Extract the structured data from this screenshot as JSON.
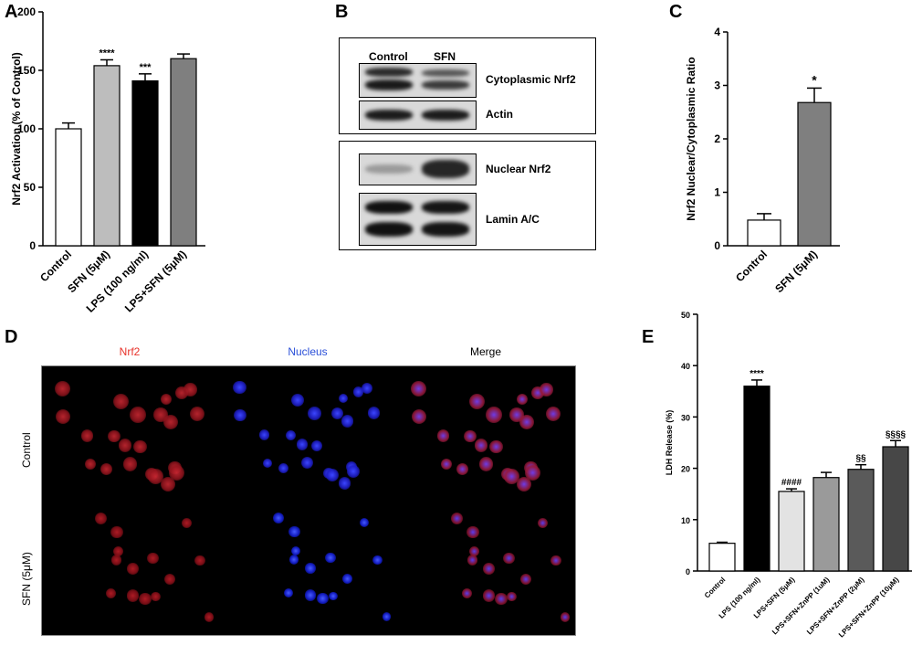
{
  "panels": {
    "a": "A",
    "b": "B",
    "c": "C",
    "d": "D",
    "e": "E"
  },
  "chart_data": [
    {
      "id": "A",
      "type": "bar",
      "ylabel": "Nrf2 Activation (% of Control)",
      "xlabel": "",
      "ylim": [
        0,
        200
      ],
      "yticks": [
        0,
        50,
        100,
        150,
        200
      ],
      "categories": [
        "Control",
        "SFN (5μM)",
        "LPS (100 ng/ml)",
        "LPS+SFN (5μM)"
      ],
      "values": [
        100,
        154,
        141,
        160
      ],
      "errors": [
        5,
        5,
        6,
        4
      ],
      "annotations": [
        "",
        "****",
        "***",
        ""
      ],
      "colors": [
        "#ffffff",
        "#bdbdbd",
        "#000000",
        "#7f7f7f"
      ]
    },
    {
      "id": "C",
      "type": "bar",
      "ylabel": "Nrf2 Nuclear/Cytoplasmic Ratio",
      "xlabel": "",
      "ylim": [
        0,
        4
      ],
      "yticks": [
        0,
        1,
        2,
        3,
        4
      ],
      "categories": [
        "Control",
        "SFN (5μM)"
      ],
      "values": [
        0.48,
        2.68
      ],
      "errors": [
        0.12,
        0.27
      ],
      "annotations": [
        "",
        "*"
      ],
      "colors": [
        "#ffffff",
        "#7f7f7f"
      ]
    },
    {
      "id": "E",
      "type": "bar",
      "ylabel": "LDH Release (%)",
      "xlabel": "",
      "ylim": [
        0,
        50
      ],
      "yticks": [
        0,
        10,
        20,
        30,
        40,
        50
      ],
      "categories": [
        "Control",
        "LPS (100 ng/ml)",
        "LPS+SFN (5μM)",
        "LPS+SFN+ZnPP (1uM)",
        "LPS+SFN+ZnPP (2μM)",
        "LPS+SFN+ZnPP (10μM)"
      ],
      "values": [
        5.4,
        36,
        15.5,
        18.2,
        19.8,
        24.2
      ],
      "errors": [
        0.2,
        1.2,
        0.5,
        1.0,
        0.9,
        1.2
      ],
      "annotations": [
        "",
        "****",
        "####",
        "",
        "§§",
        "§§§§"
      ],
      "colors": [
        "#ffffff",
        "#000000",
        "#e3e3e3",
        "#9a9a9a",
        "#5a5a5a",
        "#474747"
      ]
    }
  ],
  "blot": {
    "lanes": [
      "Control",
      "SFN"
    ],
    "labels": [
      "Cytoplasmic Nrf2",
      "Actin",
      "Nuclear Nrf2",
      "Lamin A/C"
    ]
  },
  "micrographs": {
    "columns": [
      "Nrf2",
      "Nucleus",
      "Merge"
    ],
    "column_colors": [
      "#e8322a",
      "#2a4fd8",
      "#000000"
    ],
    "rows": [
      "Control",
      "SFN (5μM)"
    ]
  }
}
